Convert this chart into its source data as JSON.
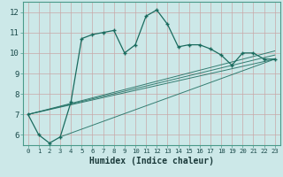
{
  "xlabel": "Humidex (Indice chaleur)",
  "bg_color": "#cce8e8",
  "grid_color": "#b8d8d8",
  "grid_color_minor": "#d0e8e8",
  "line_color": "#1a6b5e",
  "spine_color": "#4a9a8a",
  "xlim": [
    -0.5,
    23.5
  ],
  "ylim": [
    5.5,
    12.5
  ],
  "yticks": [
    6,
    7,
    8,
    9,
    10,
    11,
    12
  ],
  "xticks": [
    0,
    1,
    2,
    3,
    4,
    5,
    6,
    7,
    8,
    9,
    10,
    11,
    12,
    13,
    14,
    15,
    16,
    17,
    18,
    19,
    20,
    21,
    22,
    23
  ],
  "series": [
    [
      0,
      7.0
    ],
    [
      1,
      6.0
    ],
    [
      2,
      5.6
    ],
    [
      3,
      5.9
    ],
    [
      4,
      7.6
    ],
    [
      5,
      10.7
    ],
    [
      6,
      10.9
    ],
    [
      7,
      11.0
    ],
    [
      8,
      11.1
    ],
    [
      9,
      10.0
    ],
    [
      10,
      10.4
    ],
    [
      11,
      11.8
    ],
    [
      12,
      12.1
    ],
    [
      13,
      11.4
    ],
    [
      14,
      10.3
    ],
    [
      15,
      10.4
    ],
    [
      16,
      10.4
    ],
    [
      17,
      10.2
    ],
    [
      18,
      9.9
    ],
    [
      19,
      9.4
    ],
    [
      20,
      10.0
    ],
    [
      21,
      10.0
    ],
    [
      22,
      9.7
    ],
    [
      23,
      9.7
    ]
  ],
  "extra_lines": [
    [
      [
        0,
        7.0
      ],
      [
        23,
        9.7
      ]
    ],
    [
      [
        0,
        7.0
      ],
      [
        23,
        9.9
      ]
    ],
    [
      [
        0,
        7.0
      ],
      [
        23,
        10.1
      ]
    ],
    [
      [
        3,
        5.9
      ],
      [
        23,
        9.7
      ]
    ]
  ]
}
